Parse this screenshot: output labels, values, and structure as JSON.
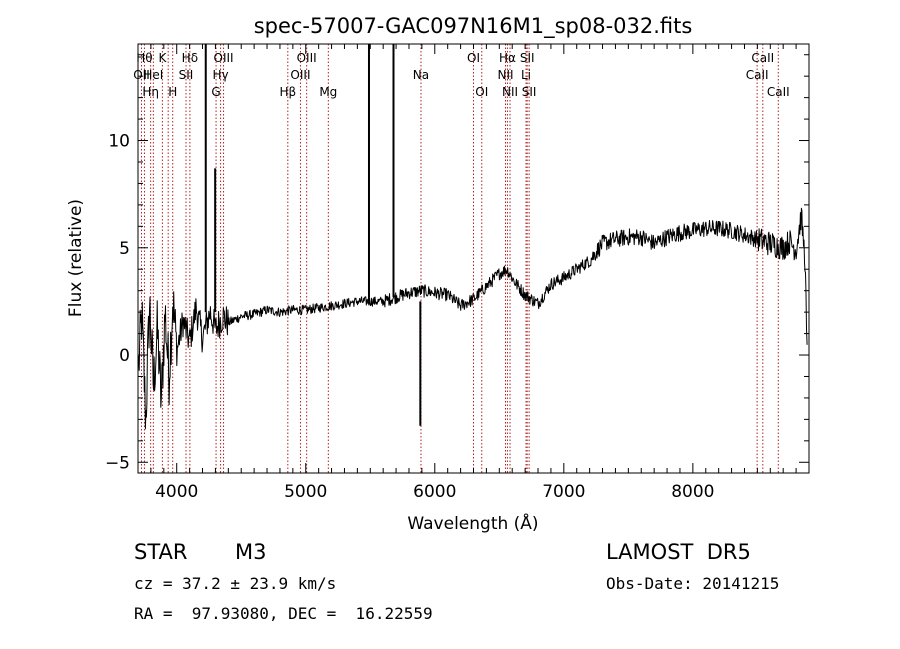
{
  "chart_data": {
    "type": "line",
    "title": "spec-57007-GAC097N16M1_sp08-032.fits",
    "xlabel": "Wavelength (Å)",
    "ylabel": "Flux (relative)",
    "xlim": [
      3700,
      8900
    ],
    "ylim": [
      -5.5,
      14.5
    ],
    "x_ticks": [
      4000,
      5000,
      6000,
      7000,
      8000
    ],
    "y_ticks": [
      -5,
      0,
      5,
      10
    ],
    "x_tick_labels": [
      "4000",
      "5000",
      "6000",
      "7000",
      "8000"
    ],
    "y_tick_labels": [
      "−5",
      "0",
      "5",
      "10"
    ],
    "grid": false,
    "line_color": "#000000",
    "marker_color": "#b22222",
    "spectrum_anchors": [
      [
        3705,
        -0.5
      ],
      [
        3730,
        1.8
      ],
      [
        3760,
        -3.0
      ],
      [
        3790,
        2.4
      ],
      [
        3820,
        -1.5
      ],
      [
        3850,
        1.2
      ],
      [
        3880,
        -2.2
      ],
      [
        3910,
        2.0
      ],
      [
        3940,
        -1.0
      ],
      [
        3970,
        2.6
      ],
      [
        4000,
        0.2
      ],
      [
        4050,
        1.6
      ],
      [
        4100,
        0.6
      ],
      [
        4150,
        2.2
      ],
      [
        4200,
        0.8
      ],
      [
        4260,
        2.0
      ],
      [
        4300,
        1.2
      ],
      [
        4360,
        1.8
      ],
      [
        4400,
        1.5
      ],
      [
        4500,
        1.8
      ],
      [
        4600,
        1.9
      ],
      [
        4700,
        2.1
      ],
      [
        4800,
        2.0
      ],
      [
        4900,
        2.1
      ],
      [
        5000,
        2.1
      ],
      [
        5100,
        2.2
      ],
      [
        5200,
        2.3
      ],
      [
        5300,
        2.4
      ],
      [
        5400,
        2.5
      ],
      [
        5500,
        2.5
      ],
      [
        5600,
        2.5
      ],
      [
        5700,
        2.7
      ],
      [
        5800,
        2.9
      ],
      [
        5900,
        3.0
      ],
      [
        6000,
        2.9
      ],
      [
        6100,
        2.8
      ],
      [
        6200,
        2.3
      ],
      [
        6300,
        2.6
      ],
      [
        6400,
        3.2
      ],
      [
        6500,
        3.8
      ],
      [
        6560,
        4.0
      ],
      [
        6620,
        3.4
      ],
      [
        6700,
        2.8
      ],
      [
        6800,
        2.4
      ],
      [
        6900,
        3.3
      ],
      [
        7000,
        3.6
      ],
      [
        7100,
        4.0
      ],
      [
        7200,
        4.4
      ],
      [
        7300,
        5.2
      ],
      [
        7400,
        5.4
      ],
      [
        7500,
        5.5
      ],
      [
        7600,
        5.5
      ],
      [
        7700,
        5.2
      ],
      [
        7800,
        5.5
      ],
      [
        7900,
        5.7
      ],
      [
        8000,
        5.8
      ],
      [
        8100,
        5.9
      ],
      [
        8200,
        5.9
      ],
      [
        8300,
        5.8
      ],
      [
        8400,
        5.6
      ],
      [
        8500,
        5.4
      ],
      [
        8600,
        5.2
      ],
      [
        8700,
        5.0
      ],
      [
        8750,
        5.3
      ],
      [
        8800,
        4.9
      ],
      [
        8840,
        6.5
      ],
      [
        8870,
        4.4
      ],
      [
        8885,
        0.0
      ]
    ],
    "spikes": [
      {
        "x": 4225,
        "y0": 2.0,
        "y1": 14.5
      },
      {
        "x": 4298,
        "y0": 2.0,
        "y1": 8.7
      },
      {
        "x": 5490,
        "y0": 2.5,
        "y1": 14.5
      },
      {
        "x": 5680,
        "y0": 2.7,
        "y1": 14.5
      },
      {
        "x": 5888,
        "y0": 2.5,
        "y1": -3.3
      }
    ],
    "lines": [
      {
        "x": 3727,
        "label": "OII",
        "row": 1
      },
      {
        "x": 3750,
        "label": "Hθ",
        "row": 0
      },
      {
        "x": 3798,
        "label": "Hη",
        "row": 2
      },
      {
        "x": 3819,
        "label": "HeI",
        "row": 1
      },
      {
        "x": 3889,
        "label": "K",
        "row": 0
      },
      {
        "x": 3934,
        "label": "",
        "row": 0
      },
      {
        "x": 3969,
        "label": "H",
        "row": 2
      },
      {
        "x": 4072,
        "label": "SII",
        "row": 1
      },
      {
        "x": 4102,
        "label": "Hδ",
        "row": 0
      },
      {
        "x": 4305,
        "label": "G",
        "row": 2
      },
      {
        "x": 4340,
        "label": "Hγ",
        "row": 1
      },
      {
        "x": 4363,
        "label": "OIII",
        "row": 0
      },
      {
        "x": 4861,
        "label": "Hβ",
        "row": 2
      },
      {
        "x": 4959,
        "label": "OIII",
        "row": 1
      },
      {
        "x": 5007,
        "label": "OIII",
        "row": 0
      },
      {
        "x": 5175,
        "label": "Mg",
        "row": 2
      },
      {
        "x": 5893,
        "label": "Na",
        "row": 1
      },
      {
        "x": 6300,
        "label": "OI",
        "row": 0
      },
      {
        "x": 6364,
        "label": "OI",
        "row": 2
      },
      {
        "x": 6548,
        "label": "NII",
        "row": 1
      },
      {
        "x": 6563,
        "label": "Hα",
        "row": 0
      },
      {
        "x": 6583,
        "label": "NII",
        "row": 2
      },
      {
        "x": 6707,
        "label": "Li",
        "row": 1
      },
      {
        "x": 6716,
        "label": "SII",
        "row": 0
      },
      {
        "x": 6731,
        "label": "SII",
        "row": 2
      },
      {
        "x": 8498,
        "label": "CaII",
        "row": 1
      },
      {
        "x": 8542,
        "label": "CaII",
        "row": 0
      },
      {
        "x": 8662,
        "label": "CaII",
        "row": 2
      }
    ]
  },
  "info": {
    "object_class": "STAR",
    "subclass": "M3",
    "survey": "LAMOST  DR5",
    "cz": "cz = 37.2 ± 23.9 km/s",
    "obs_date": "Obs-Date: 20141215",
    "coords": "RA =  97.93080, DEC =  16.22559"
  }
}
